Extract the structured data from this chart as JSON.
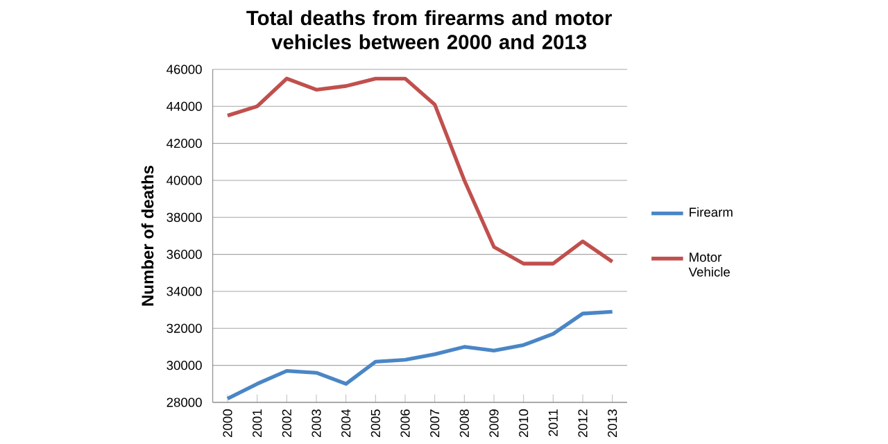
{
  "chart_data": {
    "type": "line",
    "title": "Total deaths from firearms and motor vehicles between 2000 and 2013",
    "ylabel": "Number of deaths",
    "categories": [
      "2000",
      "2001",
      "2002",
      "2003",
      "2004",
      "2005",
      "2006",
      "2007",
      "2008",
      "2009",
      "2010",
      "2011",
      "2012",
      "2013"
    ],
    "series": [
      {
        "name": "Firearm",
        "color": "#4a86c5",
        "values": [
          28200,
          29000,
          29700,
          29600,
          29000,
          30200,
          30300,
          30600,
          31000,
          30800,
          31100,
          31700,
          32800,
          32900
        ]
      },
      {
        "name": "Motor Vehicle",
        "color": "#c0504d",
        "values": [
          43500,
          44000,
          45500,
          44900,
          45100,
          45500,
          45500,
          44100,
          40000,
          36400,
          35500,
          35500,
          36700,
          35600
        ]
      }
    ],
    "ylim": [
      28000,
      46000
    ],
    "yticks": [
      28000,
      30000,
      32000,
      34000,
      36000,
      38000,
      40000,
      42000,
      44000,
      46000
    ],
    "grid": "y",
    "legend": "right",
    "marker": "none",
    "line_style": "solid"
  }
}
